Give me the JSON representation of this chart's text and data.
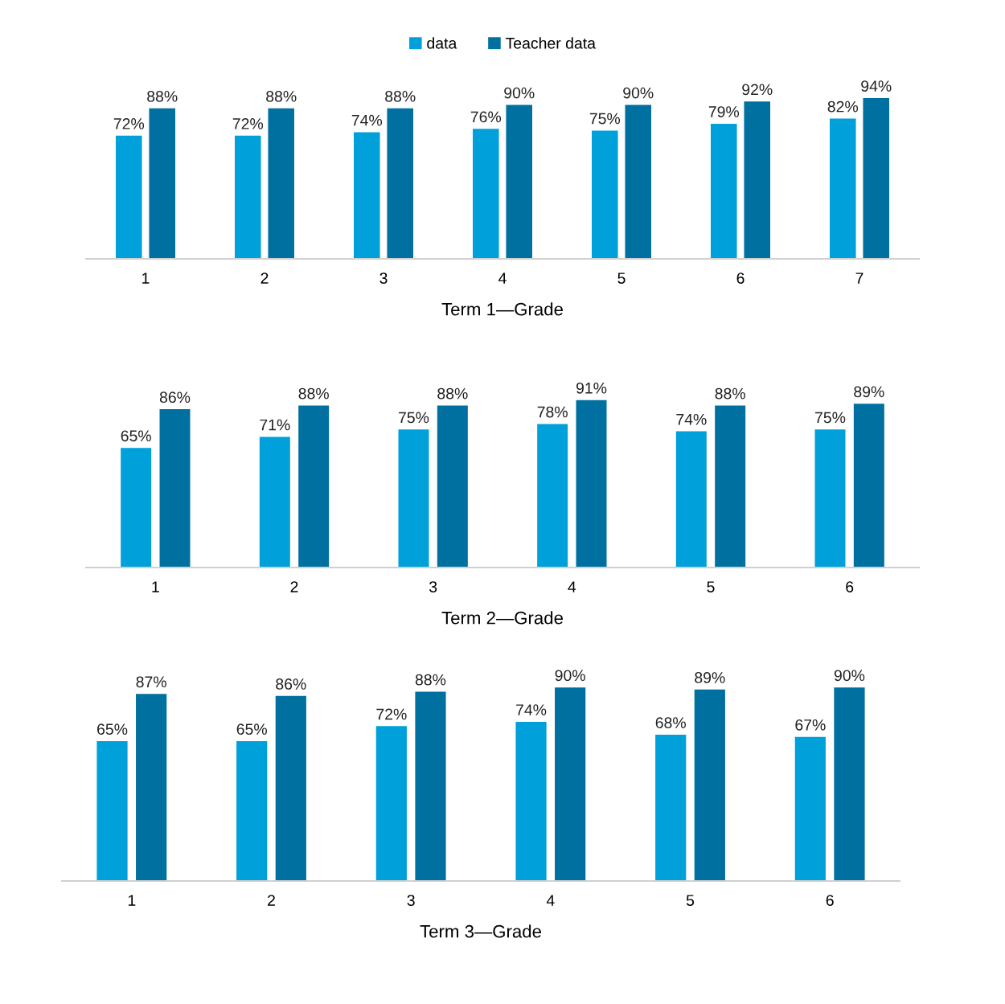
{
  "chart_data": [
    {
      "type": "bar",
      "xlabel": "Term 1—Grade",
      "categories": [
        "1",
        "2",
        "3",
        "4",
        "5",
        "6",
        "7"
      ],
      "legend": "top",
      "grid": false,
      "tick_labels": "x",
      "series": [
        {
          "name": "data",
          "color": "#00a0da",
          "values": [
            72,
            72,
            74,
            76,
            75,
            79,
            82
          ],
          "value_labels": [
            "72%",
            "72%",
            "74%",
            "76%",
            "75%",
            "79%",
            "82%"
          ]
        },
        {
          "name": "Teacher data",
          "color": "#0070a0",
          "values": [
            88,
            88,
            88,
            90,
            90,
            92,
            94
          ],
          "value_labels": [
            "88%",
            "88%",
            "88%",
            "90%",
            "90%",
            "92%",
            "94%"
          ]
        }
      ]
    },
    {
      "type": "bar",
      "xlabel": "Term 2—Grade",
      "categories": [
        "1",
        "2",
        "3",
        "4",
        "5",
        "6"
      ],
      "grid": false,
      "tick_labels": "x",
      "series": [
        {
          "color": "#00a0da",
          "values": [
            65,
            71,
            75,
            78,
            74,
            75
          ],
          "value_labels": [
            "65%",
            "71%",
            "75%",
            "78%",
            "74%",
            "75%"
          ]
        },
        {
          "color": "#0070a0",
          "values": [
            86,
            88,
            88,
            91,
            88,
            89
          ],
          "value_labels": [
            "86%",
            "88%",
            "88%",
            "91%",
            "88%",
            "89%"
          ]
        }
      ]
    },
    {
      "type": "bar",
      "xlabel": "Term 3—Grade",
      "categories": [
        "1",
        "2",
        "3",
        "4",
        "5",
        "6"
      ],
      "grid": false,
      "tick_labels": "x",
      "series": [
        {
          "color": "#00a0da",
          "values": [
            65,
            65,
            72,
            74,
            68,
            67
          ],
          "value_labels": [
            "65%",
            "65%",
            "72%",
            "74%",
            "68%",
            "67%"
          ]
        },
        {
          "color": "#0070a0",
          "values": [
            87,
            86,
            88,
            90,
            89,
            90
          ],
          "value_labels": [
            "87%",
            "86%",
            "88%",
            "90%",
            "89%",
            "90%"
          ]
        }
      ]
    }
  ]
}
